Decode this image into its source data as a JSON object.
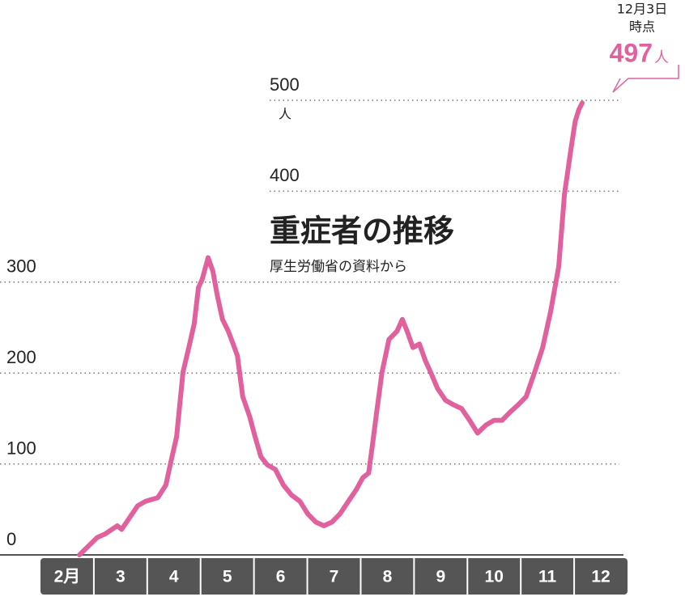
{
  "chart_data": {
    "type": "line",
    "title": "重症者の推移",
    "subtitle": "厚生労働省の資料から",
    "y_unit": "人",
    "end_label": {
      "date": "12月3日",
      "note": "時点"
    },
    "xlim": [
      2,
      13
    ],
    "xticks": [
      {
        "value": 2,
        "label": "2月"
      },
      3,
      4,
      5,
      6,
      7,
      8,
      9,
      10,
      11,
      12
    ],
    "ylim": [
      0,
      500
    ],
    "yticks": [
      0,
      100,
      200,
      300,
      400,
      500
    ],
    "grid": true,
    "series": [
      {
        "name": "重症者",
        "color": "#e0619e",
        "x": [
          2.73,
          3.06,
          3.21,
          3.44,
          3.52,
          3.67,
          3.82,
          3.97,
          4.2,
          4.35,
          4.43,
          4.55,
          4.61,
          4.67,
          4.78,
          4.88,
          4.96,
          5.03,
          5.14,
          5.23,
          5.31,
          5.41,
          5.52,
          5.61,
          5.69,
          5.79,
          5.92,
          6.02,
          6.13,
          6.25,
          6.4,
          6.55,
          6.7,
          6.86,
          7.01,
          7.16,
          7.31,
          7.46,
          7.61,
          7.77,
          7.92,
          8.04,
          8.15,
          8.22,
          8.3,
          8.4,
          8.53,
          8.68,
          8.78,
          8.87,
          8.98,
          9.1,
          9.21,
          9.31,
          9.44,
          9.59,
          9.74,
          9.89,
          10.04,
          10.19,
          10.35,
          10.5,
          10.65,
          10.8,
          10.95,
          11.1,
          11.26,
          11.41,
          11.56,
          11.71,
          11.82,
          11.94,
          12.02,
          12.09,
          12.15
        ],
        "values": [
          0,
          19,
          23,
          32,
          28,
          41,
          54,
          59,
          63,
          77,
          99,
          130,
          165,
          201,
          228,
          254,
          294,
          303,
          327,
          312,
          286,
          259,
          246,
          232,
          219,
          174,
          152,
          130,
          108,
          99,
          94,
          77,
          66,
          59,
          45,
          36,
          32,
          36,
          45,
          59,
          72,
          85,
          90,
          121,
          157,
          201,
          237,
          246,
          259,
          246,
          228,
          232,
          214,
          201,
          183,
          170,
          165,
          161,
          148,
          134,
          143,
          148,
          148,
          157,
          165,
          174,
          201,
          228,
          268,
          317,
          397,
          446,
          477,
          490,
          497
        ]
      }
    ]
  }
}
